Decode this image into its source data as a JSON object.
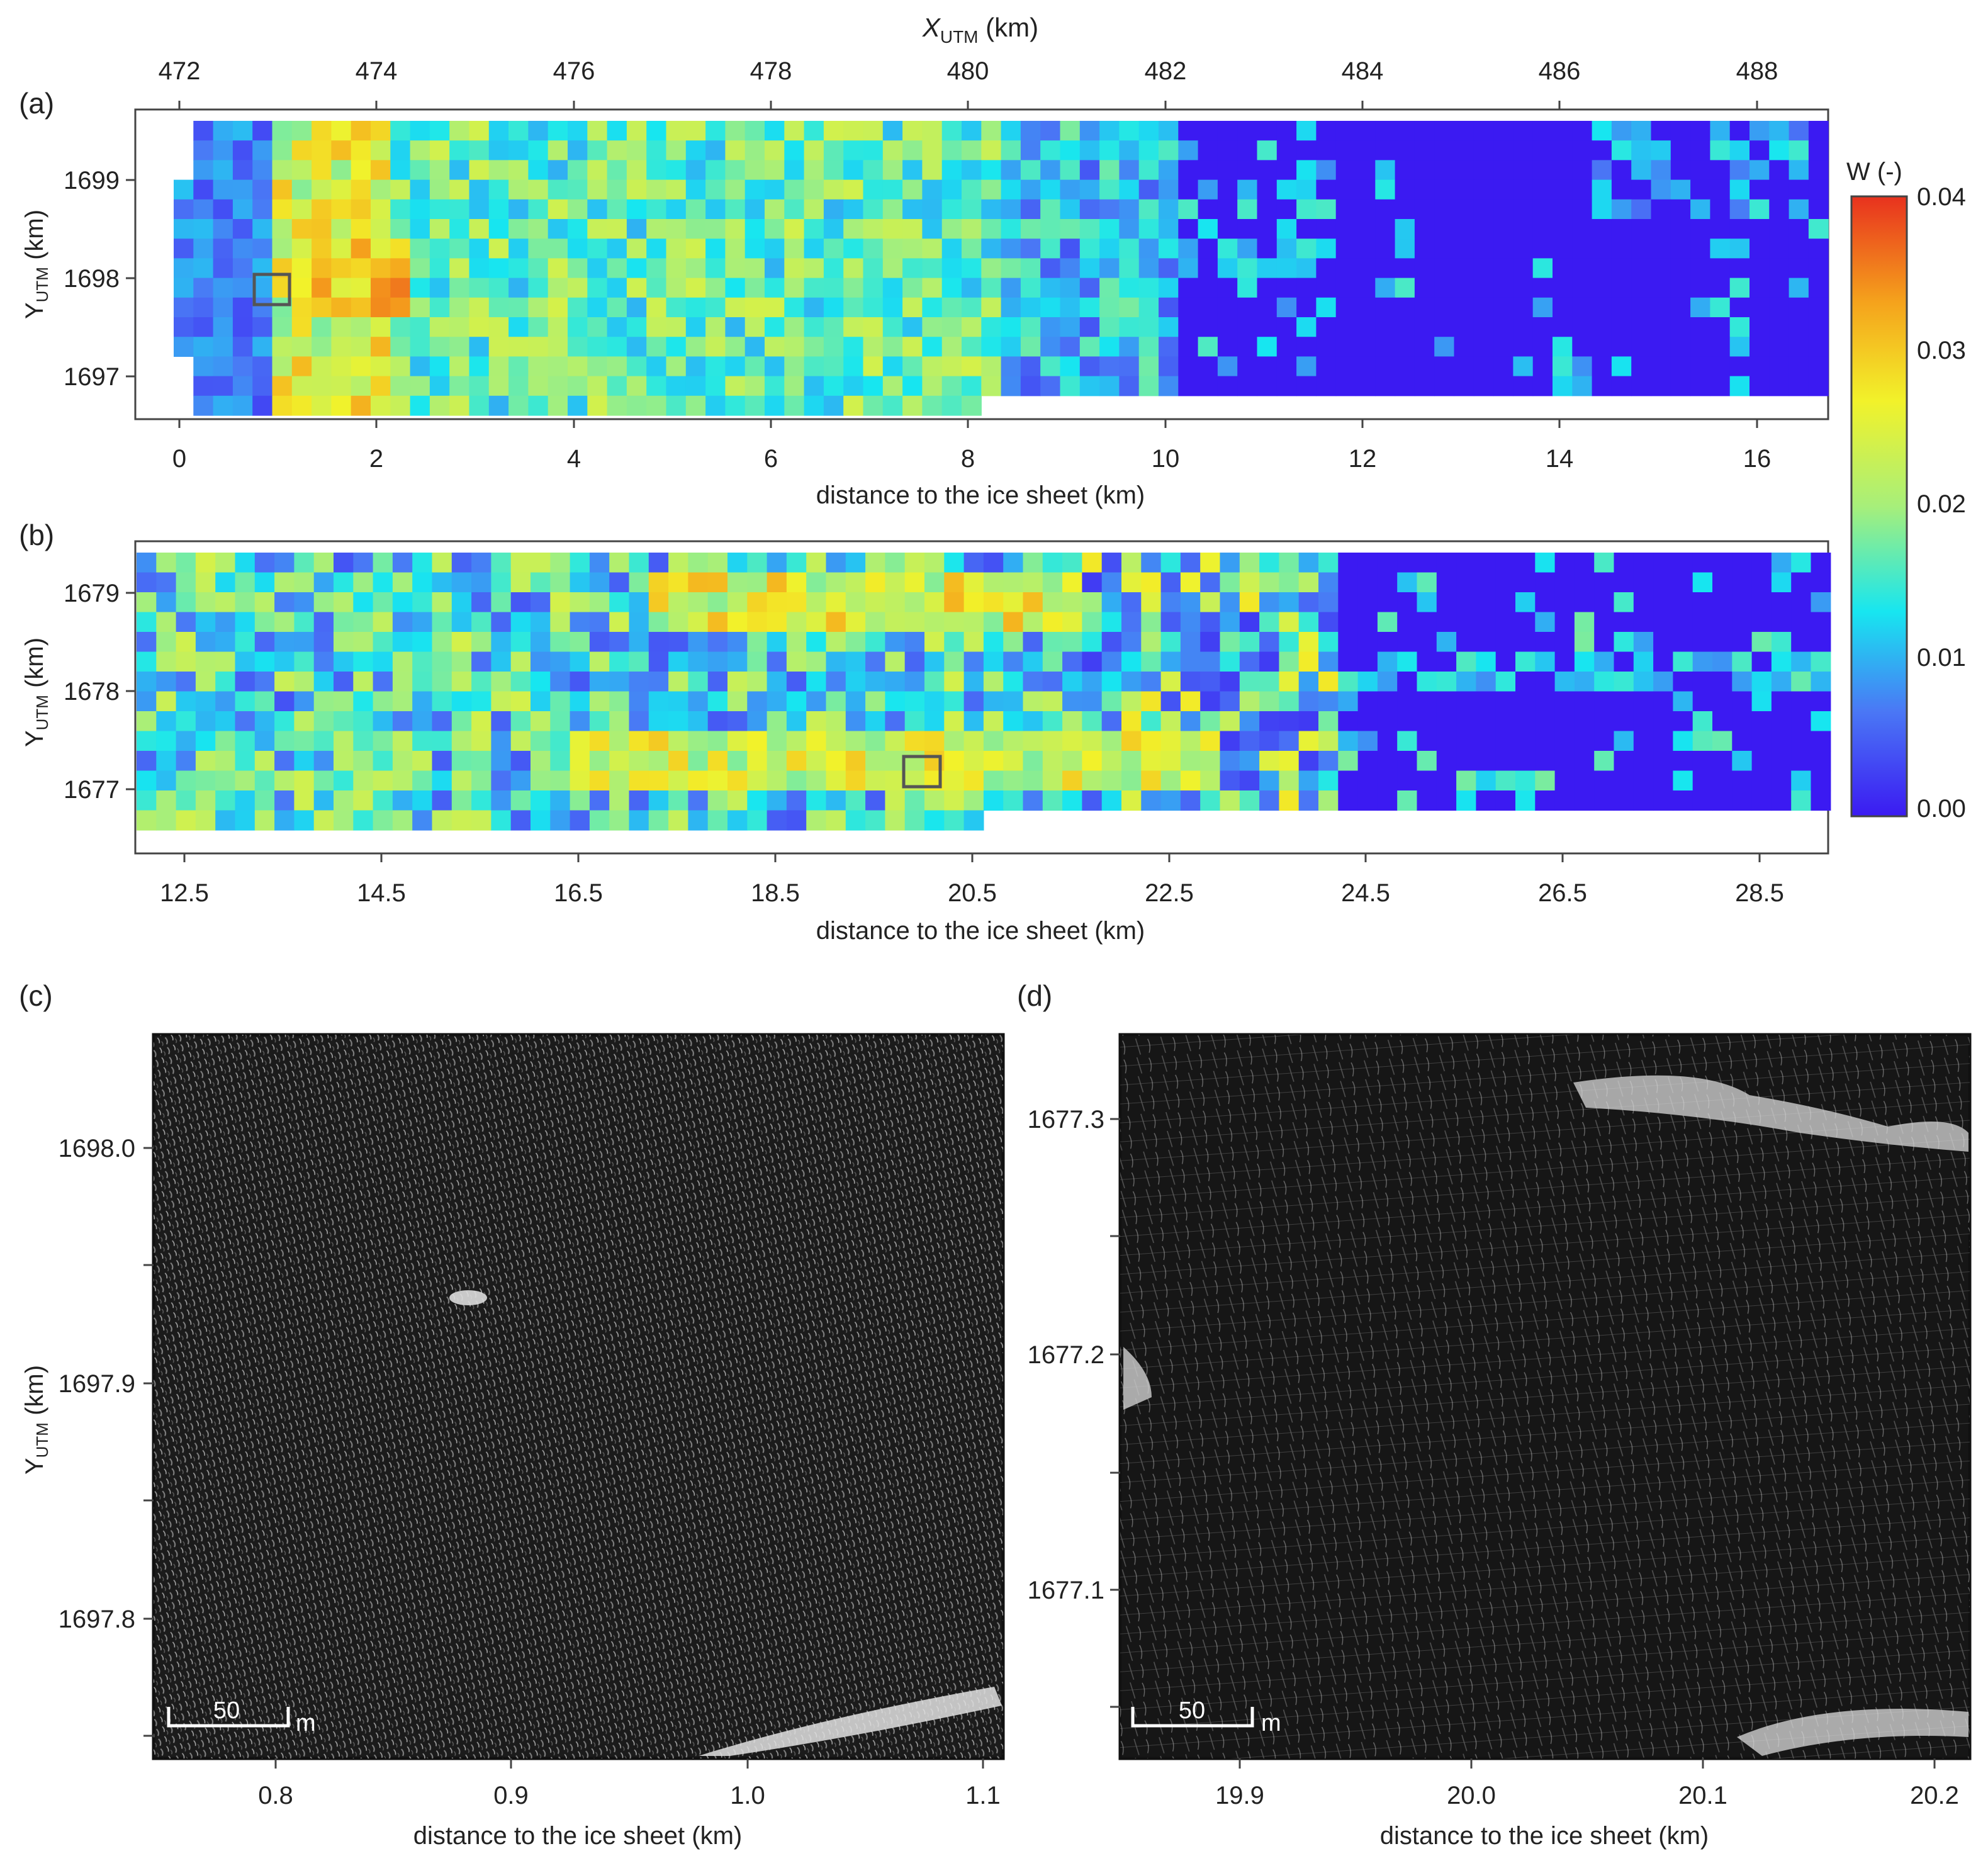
{
  "figure": {
    "panel_a": {
      "tag": "(a)",
      "top_axis_label": "X",
      "top_axis_sub": "UTM",
      "top_axis_unit": " (km)",
      "top_ticks": [
        "472",
        "474",
        "476",
        "478",
        "480",
        "482",
        "484",
        "486",
        "488"
      ],
      "y_label": "Y",
      "y_sub": "UTM",
      "y_unit": " (km)",
      "y_ticks": [
        "1699",
        "1698",
        "1697"
      ],
      "x_ticks": [
        "0",
        "2",
        "4",
        "6",
        "8",
        "10",
        "12",
        "14",
        "16"
      ],
      "x_label": "distance to the ice sheet (km)"
    },
    "panel_b": {
      "tag": "(b)",
      "y_label": "Y",
      "y_sub": "UTM",
      "y_unit": " (km)",
      "y_ticks": [
        "1679",
        "1678",
        "1677"
      ],
      "x_ticks": [
        "12.5",
        "14.5",
        "16.5",
        "18.5",
        "20.5",
        "22.5",
        "24.5",
        "26.5",
        "28.5"
      ],
      "x_label": "distance to the ice sheet (km)"
    },
    "colorbar": {
      "title": "W (-)",
      "ticks": [
        "0.04",
        "0.03",
        "0.02",
        "0.01",
        "0.00"
      ],
      "stops": [
        "#3b1af2",
        "#4a78f5",
        "#17e6f0",
        "#a7ef7a",
        "#f2f22a",
        "#f5a21c",
        "#e8321e"
      ]
    },
    "panel_c": {
      "tag": "(c)",
      "y_label": "Y",
      "y_sub": "UTM",
      "y_unit": " (km)",
      "y_ticks": [
        "1698.0",
        "1697.9",
        "1697.8"
      ],
      "x_ticks": [
        "0.8",
        "0.9",
        "1.0",
        "1.1"
      ],
      "x_label": "distance to the ice sheet (km)",
      "scale_value": "50",
      "scale_unit": "m"
    },
    "panel_d": {
      "tag": "(d)",
      "y_ticks": [
        "1677.3",
        "1677.2",
        "1677.1"
      ],
      "x_ticks": [
        "19.9",
        "20.0",
        "20.1",
        "20.2"
      ],
      "x_label": "distance to the ice sheet (km)",
      "scale_value": "50",
      "scale_unit": "m"
    }
  }
}
